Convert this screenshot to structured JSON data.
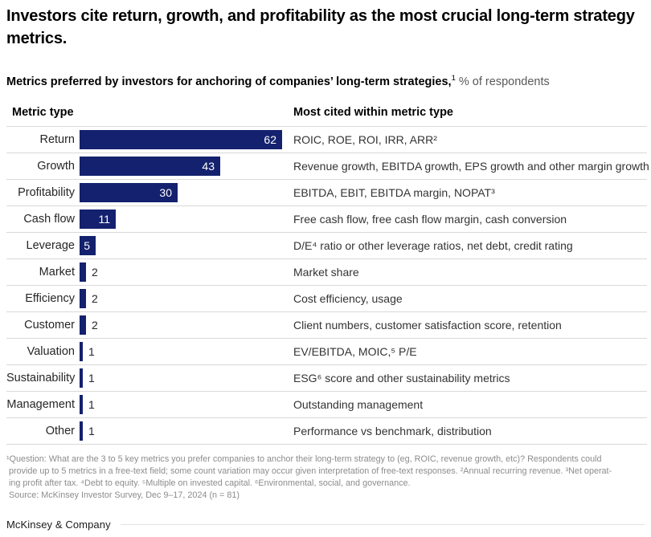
{
  "header": {
    "title": "Investors cite return, growth, and profitability as the most crucial long-term strategy metrics.",
    "subtitle_bold": "Metrics preferred by investors for anchoring of companies’ long-term strategies,",
    "subtitle_sup": "1",
    "subtitle_rest": " % of respondents"
  },
  "table": {
    "col1_header": "Metric type",
    "col2_header": "Most cited within metric type",
    "rows": [
      {
        "label": "Return",
        "value": 62,
        "description": "ROIC, ROE, ROI, IRR, ARR²"
      },
      {
        "label": "Growth",
        "value": 43,
        "description": "Revenue growth, EBITDA growth, EPS growth and other margin growth"
      },
      {
        "label": "Profitability",
        "value": 30,
        "description": "EBITDA, EBIT, EBITDA margin, NOPAT³"
      },
      {
        "label": "Cash flow",
        "value": 11,
        "description": "Free cash flow, free cash flow margin, cash conversion"
      },
      {
        "label": "Leverage",
        "value": 5,
        "description": "D/E⁴ ratio or other leverage ratios, net debt, credit rating"
      },
      {
        "label": "Market",
        "value": 2,
        "description": "Market share"
      },
      {
        "label": "Efficiency",
        "value": 2,
        "description": "Cost efficiency, usage"
      },
      {
        "label": "Customer",
        "value": 2,
        "description": "Client numbers, customer satisfaction score, retention"
      },
      {
        "label": "Valuation",
        "value": 1,
        "description": "EV/EBITDA, MOIC,⁵ P/E"
      },
      {
        "label": "Sustainability",
        "value": 1,
        "description": "ESG⁶ score and other sustainability metrics"
      },
      {
        "label": "Management",
        "value": 1,
        "description": "Outstanding management"
      },
      {
        "label": "Other",
        "value": 1,
        "description": "Performance vs benchmark, distribution"
      }
    ]
  },
  "chart_data": {
    "type": "bar",
    "orientation": "horizontal",
    "title": "Metrics preferred by investors for anchoring of companies’ long-term strategies, % of respondents",
    "categories": [
      "Return",
      "Growth",
      "Profitability",
      "Cash flow",
      "Leverage",
      "Market",
      "Efficiency",
      "Customer",
      "Valuation",
      "Sustainability",
      "Management",
      "Other"
    ],
    "values": [
      62,
      43,
      30,
      11,
      5,
      2,
      2,
      2,
      1,
      1,
      1,
      1
    ],
    "value_unit": "% of respondents",
    "xlabel": "",
    "ylabel": "Metric type",
    "xlim": [
      0,
      62
    ],
    "grid": false,
    "legend": false,
    "bar_color": "#14216E",
    "data_labels": true,
    "annotations_column_header": "Most cited within metric type",
    "annotations": [
      "ROIC, ROE, ROI, IRR, ARR²",
      "Revenue growth, EBITDA growth, EPS growth and other margin growth",
      "EBITDA, EBIT, EBITDA margin, NOPAT³",
      "Free cash flow, free cash flow margin, cash conversion",
      "D/E⁴ ratio or other leverage ratios, net debt, credit rating",
      "Market share",
      "Cost efficiency, usage",
      "Client numbers, customer satisfaction score, retention",
      "EV/EBITDA, MOIC,⁵ P/E",
      "ESG⁶ score and other sustainability metrics",
      "Outstanding management",
      "Performance vs benchmark, distribution"
    ]
  },
  "footnotes": {
    "lines": [
      "¹Question: What are the 3 to 5 key metrics you prefer companies to anchor their long-term strategy to (eg, ROIC, revenue growth, etc)? Respondents could",
      "provide up to 5 metrics in a free-text field; some count variation may occur given interpretation of free-text responses. ²Annual recurring revenue. ³Net operat-",
      "ing profit after tax. ⁴Debt to equity. ⁵Multiple on invested capital. ⁶Environmental, social, and governance."
    ],
    "source": "Source: McKinsey Investor Survey, Dec 9–17, 2024 (n = 81)"
  },
  "footer": {
    "brand": "McKinsey & Company"
  },
  "colors": {
    "bar": "#14216E",
    "divider": "#d9d9d9",
    "footnote_gray": "#8c8c8c",
    "bar_label_inside": "#ffffff",
    "bar_label_outside": "#262626"
  }
}
